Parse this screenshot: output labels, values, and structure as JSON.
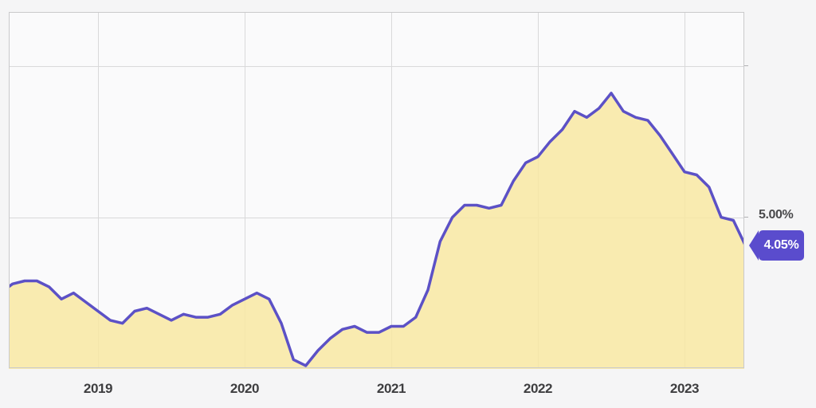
{
  "chart_data": {
    "type": "area",
    "x": [
      "2018-04",
      "2018-05",
      "2018-06",
      "2018-07",
      "2018-08",
      "2018-09",
      "2018-10",
      "2018-11",
      "2018-12",
      "2019-01",
      "2019-02",
      "2019-03",
      "2019-04",
      "2019-05",
      "2019-06",
      "2019-07",
      "2019-08",
      "2019-09",
      "2019-10",
      "2019-11",
      "2019-12",
      "2020-01",
      "2020-02",
      "2020-03",
      "2020-04",
      "2020-05",
      "2020-06",
      "2020-07",
      "2020-08",
      "2020-09",
      "2020-10",
      "2020-11",
      "2020-12",
      "2021-01",
      "2021-02",
      "2021-03",
      "2021-04",
      "2021-05",
      "2021-06",
      "2021-07",
      "2021-08",
      "2021-09",
      "2021-10",
      "2021-11",
      "2021-12",
      "2022-01",
      "2022-02",
      "2022-03",
      "2022-04",
      "2022-05",
      "2022-06",
      "2022-07",
      "2022-08",
      "2022-09",
      "2022-10",
      "2022-11",
      "2022-12",
      "2023-01",
      "2023-02",
      "2023-03",
      "2023-04",
      "2023-05"
    ],
    "values": [
      2.5,
      2.8,
      2.9,
      2.9,
      2.7,
      2.3,
      2.5,
      2.2,
      1.9,
      1.6,
      1.5,
      1.9,
      2.0,
      1.8,
      1.6,
      1.8,
      1.7,
      1.7,
      1.8,
      2.1,
      2.3,
      2.5,
      2.3,
      1.5,
      0.3,
      0.1,
      0.6,
      1.0,
      1.3,
      1.4,
      1.2,
      1.2,
      1.4,
      1.4,
      1.7,
      2.6,
      4.2,
      5.0,
      5.4,
      5.4,
      5.3,
      5.4,
      6.2,
      6.8,
      7.0,
      7.5,
      7.9,
      8.5,
      8.3,
      8.6,
      9.1,
      8.5,
      8.3,
      8.2,
      7.7,
      7.1,
      6.5,
      6.4,
      6.0,
      5.0,
      4.9,
      4.05
    ],
    "x_tick_labels": [
      "2019",
      "2020",
      "2021",
      "2022",
      "2023"
    ],
    "y_axis_right_label": "5.00%",
    "y_gridlines_pct": [
      5,
      10
    ],
    "ylim_pct": [
      0,
      11.78
    ],
    "latest_value_label": "4.05%",
    "latest_value_pct": 4.05,
    "grid": true,
    "legend_position": "none",
    "colors": {
      "line": "#5c51c6",
      "fill": "#f8e7a2",
      "badge": "#5a4ccd",
      "grid": "#d9d9da",
      "plot_border": "#c9c9cb",
      "plot_bg": "#fafafb",
      "page_bg": "#f5f5f6",
      "axis_text": "#3e3e40"
    }
  }
}
